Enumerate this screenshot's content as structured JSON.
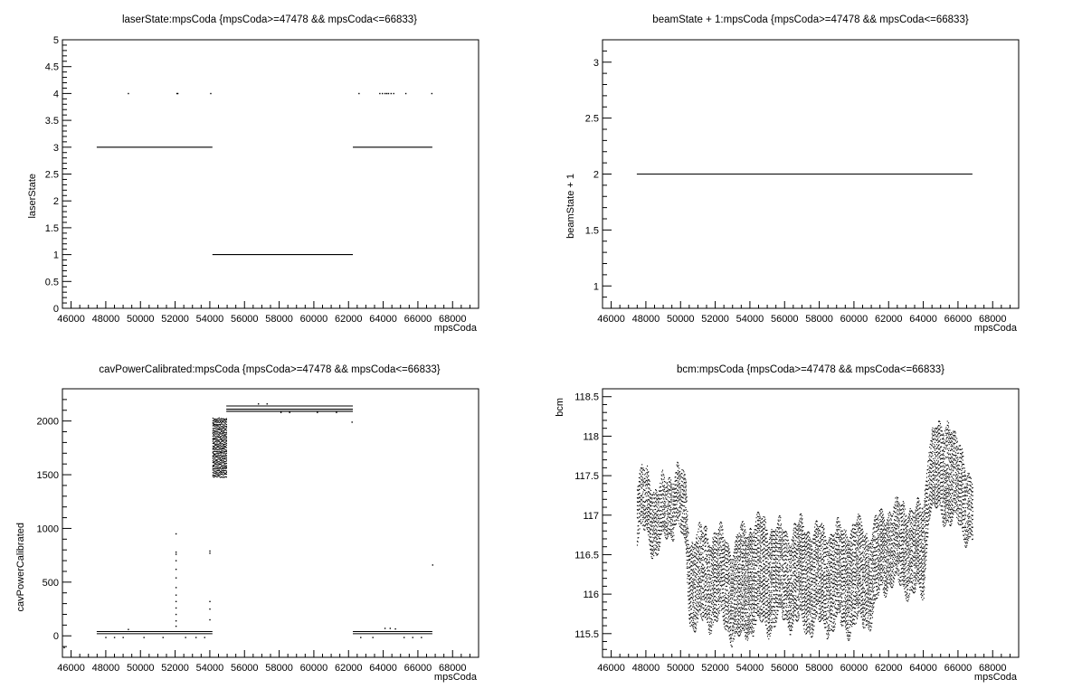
{
  "chart_data": [
    {
      "type": "scatter",
      "title": "laserState:mpsCoda {mpsCoda>=47478 && mpsCoda<=66833}",
      "xlabel": "mpsCoda",
      "ylabel": "laserState",
      "xlim": [
        45500,
        69500
      ],
      "ylim": [
        0,
        5
      ],
      "xticks": [
        46000,
        48000,
        50000,
        52000,
        54000,
        56000,
        58000,
        60000,
        62000,
        64000,
        66000,
        68000
      ],
      "yticks": [
        0,
        0.5,
        1,
        1.5,
        2,
        2.5,
        3,
        3.5,
        4,
        4.5,
        5
      ],
      "xtick_labels": [
        "46000",
        "48000",
        "50000",
        "52000",
        "54000",
        "56000",
        "58000",
        "60000",
        "62000",
        "64000",
        "66000",
        "68000"
      ],
      "ytick_labels": [
        "0",
        "0.5",
        "1",
        "1.5",
        "2",
        "2.5",
        "3",
        "3.5",
        "4",
        "4.5",
        "5"
      ],
      "segments": [
        {
          "x": [
            47478,
            54150
          ],
          "y": 3
        },
        {
          "x": [
            54150,
            62250
          ],
          "y": 1
        },
        {
          "x": [
            62250,
            66833
          ],
          "y": 3
        }
      ],
      "points": [
        {
          "x": 49300,
          "y": 4
        },
        {
          "x": 52100,
          "y": 4
        },
        {
          "x": 52150,
          "y": 4
        },
        {
          "x": 54050,
          "y": 4
        },
        {
          "x": 62600,
          "y": 4
        },
        {
          "x": 63800,
          "y": 4
        },
        {
          "x": 63950,
          "y": 4
        },
        {
          "x": 64100,
          "y": 4
        },
        {
          "x": 64200,
          "y": 4
        },
        {
          "x": 64300,
          "y": 4
        },
        {
          "x": 64450,
          "y": 4
        },
        {
          "x": 64600,
          "y": 4
        },
        {
          "x": 65300,
          "y": 4
        },
        {
          "x": 66800,
          "y": 4
        }
      ]
    },
    {
      "type": "scatter",
      "title": "beamState + 1:mpsCoda {mpsCoda>=47478 && mpsCoda<=66833}",
      "xlabel": "mpsCoda",
      "ylabel": "beamState + 1",
      "xlim": [
        45500,
        69500
      ],
      "ylim": [
        0.8,
        3.2
      ],
      "xticks": [
        46000,
        48000,
        50000,
        52000,
        54000,
        56000,
        58000,
        60000,
        62000,
        64000,
        66000,
        68000
      ],
      "yticks": [
        1,
        1.5,
        2,
        2.5,
        3
      ],
      "xtick_labels": [
        "46000",
        "48000",
        "50000",
        "52000",
        "54000",
        "56000",
        "58000",
        "60000",
        "62000",
        "64000",
        "66000",
        "68000"
      ],
      "ytick_labels": [
        "1",
        "1.5",
        "2",
        "2.5",
        "3"
      ],
      "segments": [
        {
          "x": [
            47478,
            66833
          ],
          "y": 2
        }
      ],
      "points": []
    },
    {
      "type": "scatter",
      "title": "cavPowerCalibrated:mpsCoda {mpsCoda>=47478 && mpsCoda<=66833}",
      "xlabel": "mpsCoda",
      "ylabel": "cavPowerCalibrated",
      "xlim": [
        45500,
        69500
      ],
      "ylim": [
        -200,
        2300
      ],
      "xticks": [
        46000,
        48000,
        50000,
        52000,
        54000,
        56000,
        58000,
        60000,
        62000,
        64000,
        66000,
        68000
      ],
      "yticks": [
        0,
        500,
        1000,
        1500,
        2000
      ],
      "xtick_labels": [
        "46000",
        "48000",
        "50000",
        "52000",
        "54000",
        "56000",
        "58000",
        "60000",
        "62000",
        "64000",
        "66000",
        "68000"
      ],
      "ytick_labels": [
        "0",
        "500",
        "1000",
        "1500",
        "2000"
      ],
      "segments": [
        {
          "x": [
            47478,
            54150
          ],
          "y": 40
        },
        {
          "x": [
            47478,
            54150
          ],
          "y": 20
        },
        {
          "x": [
            54950,
            62250
          ],
          "y": 2140
        },
        {
          "x": [
            54950,
            62250
          ],
          "y": 2110
        },
        {
          "x": [
            54950,
            62250
          ],
          "y": 2090
        },
        {
          "x": [
            62250,
            66833
          ],
          "y": 40
        },
        {
          "x": [
            62250,
            66833
          ],
          "y": 20
        }
      ],
      "bands": [
        {
          "x": [
            54150,
            54950
          ],
          "y": [
            1480,
            2020
          ]
        }
      ],
      "points": [
        {
          "x": 45600,
          "y": -110
        },
        {
          "x": 52050,
          "y": 950
        },
        {
          "x": 52050,
          "y": 780
        },
        {
          "x": 52050,
          "y": 760
        },
        {
          "x": 52050,
          "y": 700
        },
        {
          "x": 52050,
          "y": 620
        },
        {
          "x": 52050,
          "y": 540
        },
        {
          "x": 52050,
          "y": 450
        },
        {
          "x": 52050,
          "y": 380
        },
        {
          "x": 52050,
          "y": 320
        },
        {
          "x": 52050,
          "y": 260
        },
        {
          "x": 52050,
          "y": 200
        },
        {
          "x": 52050,
          "y": 140
        },
        {
          "x": 52050,
          "y": 90
        },
        {
          "x": 54000,
          "y": 790
        },
        {
          "x": 54000,
          "y": 770
        },
        {
          "x": 54000,
          "y": 320
        },
        {
          "x": 54000,
          "y": 250
        },
        {
          "x": 54000,
          "y": 150
        },
        {
          "x": 62200,
          "y": 1990
        },
        {
          "x": 66850,
          "y": 660
        },
        {
          "x": 49300,
          "y": 60
        },
        {
          "x": 64100,
          "y": 70
        },
        {
          "x": 64400,
          "y": 70
        },
        {
          "x": 64700,
          "y": 65
        },
        {
          "x": 48000,
          "y": -15
        },
        {
          "x": 48500,
          "y": -15
        },
        {
          "x": 49000,
          "y": -15
        },
        {
          "x": 50200,
          "y": -15
        },
        {
          "x": 51300,
          "y": -15
        },
        {
          "x": 52600,
          "y": -15
        },
        {
          "x": 53200,
          "y": -15
        },
        {
          "x": 53700,
          "y": -15
        },
        {
          "x": 62700,
          "y": -15
        },
        {
          "x": 63400,
          "y": -15
        },
        {
          "x": 65200,
          "y": -15
        },
        {
          "x": 65700,
          "y": -15
        },
        {
          "x": 66200,
          "y": -15
        },
        {
          "x": 56800,
          "y": 2160
        },
        {
          "x": 57300,
          "y": 2160
        },
        {
          "x": 58100,
          "y": 2080
        },
        {
          "x": 58600,
          "y": 2080
        },
        {
          "x": 60200,
          "y": 2080
        },
        {
          "x": 61300,
          "y": 2080
        }
      ]
    },
    {
      "type": "scatter",
      "title": "bcm:mpsCoda {mpsCoda>=47478 && mpsCoda<=66833}",
      "xlabel": "mpsCoda",
      "ylabel": "bcm",
      "xlim": [
        45500,
        69500
      ],
      "ylim": [
        115.2,
        118.6
      ],
      "xticks": [
        46000,
        48000,
        50000,
        52000,
        54000,
        56000,
        58000,
        60000,
        62000,
        64000,
        66000,
        68000
      ],
      "yticks": [
        115.5,
        116,
        116.5,
        117,
        117.5,
        118,
        118.5
      ],
      "xtick_labels": [
        "46000",
        "48000",
        "50000",
        "52000",
        "54000",
        "56000",
        "58000",
        "60000",
        "62000",
        "64000",
        "66000",
        "68000"
      ],
      "ytick_labels": [
        "115.5",
        "116",
        "116.5",
        "117",
        "117.5",
        "118",
        "118.5"
      ],
      "envelope": {
        "x": [
          47478,
          48000,
          48600,
          49300,
          49800,
          50300,
          50500,
          51000,
          52000,
          53000,
          53500,
          54000,
          55000,
          56000,
          57000,
          58000,
          59000,
          60000,
          61000,
          61500,
          62000,
          62500,
          63000,
          63500,
          64000,
          64300,
          65000,
          65400,
          65800,
          66300,
          66833
        ],
        "lo": [
          116.7,
          116.8,
          116.5,
          116.8,
          116.9,
          116.5,
          115.7,
          115.6,
          115.7,
          115.5,
          115.4,
          115.6,
          115.6,
          115.7,
          115.6,
          115.6,
          115.6,
          115.6,
          115.7,
          116.0,
          116.2,
          116.1,
          116.1,
          116.0,
          116.0,
          117.1,
          117.0,
          117.0,
          116.9,
          116.8,
          116.7
        ],
        "hi": [
          117.4,
          117.6,
          117.3,
          117.5,
          117.6,
          117.4,
          116.7,
          116.8,
          116.8,
          116.6,
          116.8,
          116.9,
          116.9,
          116.8,
          116.9,
          116.8,
          116.8,
          116.9,
          116.8,
          117.0,
          117.1,
          117.1,
          117.2,
          117.0,
          117.2,
          118.0,
          118.1,
          118.3,
          117.9,
          117.8,
          117.4
        ]
      }
    }
  ]
}
